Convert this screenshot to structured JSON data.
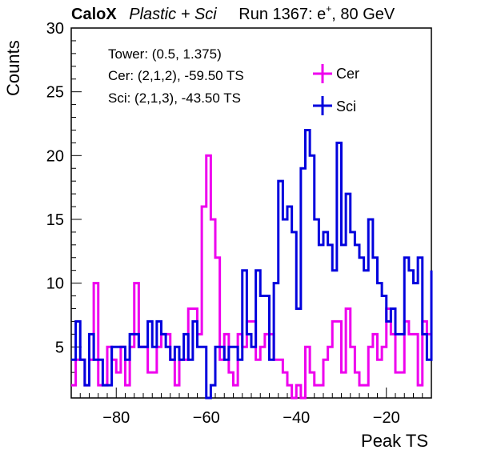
{
  "header": {
    "brand": "CaloX",
    "config": "Plastic + Sci",
    "run_prefix": "Run 1367: e",
    "run_sup": "+",
    "run_suffix": ", 80 GeV"
  },
  "info_lines": [
    "Tower: (0.5, 1.375)",
    "Cer: (2,1,2), -59.50 TS",
    "Sci: (2,1,3), -43.50 TS"
  ],
  "chart_data": {
    "type": "line",
    "style": "step-histogram",
    "xlabel": "Peak TS",
    "ylabel": "Counts",
    "xlim": [
      -90,
      -10
    ],
    "ylim": [
      1,
      30
    ],
    "bin_width": 1,
    "x_ticks": [
      -80,
      -60,
      -40,
      -20
    ],
    "y_ticks": [
      5,
      10,
      15,
      20,
      25,
      30
    ],
    "legend_position": "top-right",
    "series": [
      {
        "name": "Cer",
        "color": "#ee00ee",
        "bin_start": -90,
        "values": [
          2,
          4,
          4,
          2,
          4,
          10,
          2,
          2,
          5,
          4,
          3,
          5,
          2,
          5,
          10,
          5,
          5,
          3,
          3,
          5,
          6,
          6,
          4,
          2,
          4,
          4,
          8,
          8,
          6,
          16,
          20,
          15,
          12,
          4,
          6,
          3,
          2,
          6,
          5,
          7,
          7,
          4,
          5,
          6,
          6,
          4,
          4,
          3,
          2,
          1,
          2,
          1,
          5,
          3,
          2,
          2,
          4,
          5,
          7,
          7,
          3,
          8,
          5,
          3,
          2,
          2,
          5,
          6,
          4,
          5,
          8,
          6,
          3,
          3,
          7,
          6,
          6,
          2,
          7,
          6,
          10
        ]
      },
      {
        "name": "Sci",
        "color": "#0000dd",
        "bin_start": -90,
        "values": [
          4,
          7,
          4,
          2,
          6,
          4,
          4,
          2,
          2,
          5,
          5,
          5,
          4,
          6,
          6,
          5,
          5,
          7,
          5,
          7,
          6,
          5,
          4,
          5,
          4,
          6,
          4,
          7,
          5,
          5,
          1,
          2,
          5,
          5,
          4,
          5,
          5,
          4,
          11,
          6,
          5,
          11,
          9,
          9,
          4,
          10,
          18,
          15,
          16,
          14,
          8,
          19,
          22,
          20,
          15,
          13,
          14,
          13,
          11,
          21,
          13,
          17,
          14,
          13,
          12,
          11,
          15,
          12,
          10,
          9,
          7,
          8,
          6,
          6,
          12,
          11,
          10,
          12,
          6,
          4,
          11
        ]
      }
    ]
  }
}
